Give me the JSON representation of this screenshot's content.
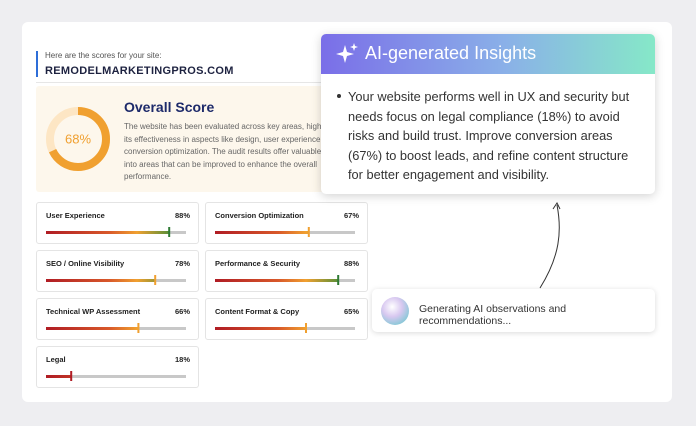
{
  "header": {
    "intro": "Here are the scores for your site:",
    "site": "REMODELMARKETINGPROS.COM"
  },
  "overall": {
    "title": "Overall Score",
    "value": 68,
    "label": "68%",
    "description": "The website has been evaluated across key areas, highlighting its effectiveness in aspects like design, user experience, and conversion optimization. The audit results offer valuable insights into areas that can be improved to enhance the overall performance."
  },
  "metrics": [
    {
      "name": "User Experience",
      "value": 88,
      "label": "88%"
    },
    {
      "name": "Conversion Optimization",
      "value": 67,
      "label": "67%"
    },
    {
      "name": "SEO / Online Visibility",
      "value": 78,
      "label": "78%"
    },
    {
      "name": "Performance & Security",
      "value": 88,
      "label": "88%"
    },
    {
      "name": "Technical WP Assessment",
      "value": 66,
      "label": "66%"
    },
    {
      "name": "Content Format & Copy",
      "value": 65,
      "label": "65%"
    },
    {
      "name": "Legal",
      "value": 18,
      "label": "18%"
    }
  ],
  "insights": {
    "title": "AI-generated Insights",
    "text": "Your website performs well in UX and security but needs focus on legal compliance (18%) to avoid risks and build trust. Improve conversion areas (67%) to boost leads, and refine content structure for better engagement and visibility."
  },
  "status": "Generating AI observations and recommendations..."
}
